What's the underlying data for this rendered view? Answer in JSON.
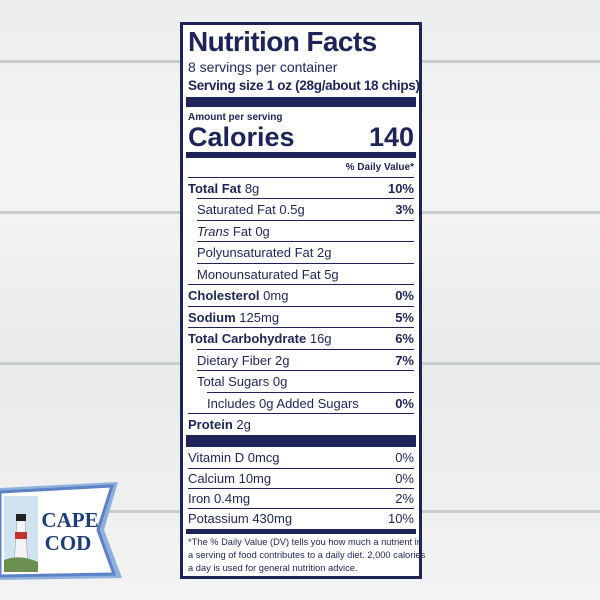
{
  "title": "Nutrition Facts",
  "servings": "8 servings per container",
  "serving_size": "Serving size 1 oz (28g/about 18 chips)",
  "amount_per_serving": "Amount per serving",
  "calories": {
    "label": "Calories",
    "value": "140"
  },
  "dv_header": "% Daily Value*",
  "nutrients": [
    {
      "name": "Total Fat",
      "amount": "8g",
      "dv": "10%"
    },
    {
      "name": "Saturated Fat",
      "amount": "0.5g",
      "dv": "3%"
    },
    {
      "name_italic": "Trans",
      "name": "Fat",
      "amount": "0g"
    },
    {
      "name": "Polyunsaturated Fat",
      "amount": "2g"
    },
    {
      "name": "Monounsaturated Fat",
      "amount": "5g"
    },
    {
      "name": "Cholesterol",
      "amount": "0mg",
      "dv": "0%"
    },
    {
      "name": "Sodium",
      "amount": "125mg",
      "dv": "5%"
    },
    {
      "name": "Total Carbohydrate",
      "amount": "16g",
      "dv": "6%"
    },
    {
      "name": "Dietary Fiber",
      "amount": "2g",
      "dv": "7%"
    },
    {
      "name": "Total Sugars",
      "amount": "0g"
    },
    {
      "name": "Includes",
      "amount": "0g Added Sugars",
      "dv": "0%"
    },
    {
      "name": "Protein",
      "amount": "2g"
    }
  ],
  "vitamins": [
    {
      "name": "Vitamin D",
      "amount": "0mcg",
      "dv": "0%"
    },
    {
      "name": "Calcium",
      "amount": "10mg",
      "dv": "0%"
    },
    {
      "name": "Iron",
      "amount": "0.4mg",
      "dv": "2%"
    },
    {
      "name": "Potassium",
      "amount": "430mg",
      "dv": "10%"
    }
  ],
  "footnote": [
    "*The % Daily Value (DV) tells you how much a nutrient in",
    "a serving of food contributes to a daily diet. 2,000 calories",
    "a day is used for general nutrition advice."
  ],
  "brand": {
    "line1": "CAPE",
    "line2": "COD"
  }
}
